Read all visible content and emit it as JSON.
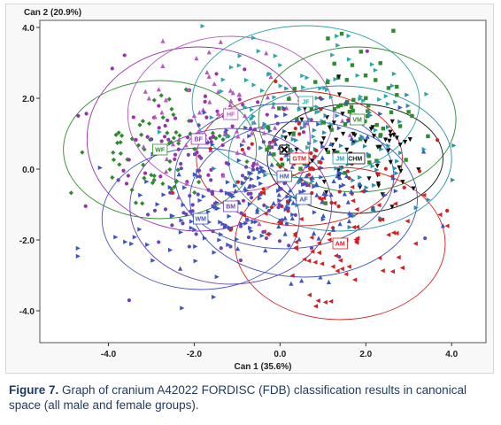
{
  "chart_data": {
    "type": "scatter",
    "title": "",
    "xlabel": "Can 1 (35.6%)",
    "ylabel": "Can 2 (20.9%)",
    "xlim": [
      -5.6,
      4.8
    ],
    "ylim": [
      -4.9,
      4.2
    ],
    "xticks": [
      -4.0,
      -2.0,
      0.0,
      2.0,
      4.0
    ],
    "yticks": [
      4.0,
      2.0,
      0.0,
      -2.0,
      -4.0
    ],
    "tick_labels_x": [
      "-4.0",
      "-2.0",
      "0.0",
      "2.0",
      "4.0"
    ],
    "tick_labels_y": [
      "4.0",
      "2.0",
      "0.0",
      "-2.0",
      "-4.0"
    ],
    "grid": false,
    "groups": [
      {
        "name": "WF",
        "color": "#2e8b2e",
        "marker": "diamond",
        "centroid": [
          -2.8,
          0.55
        ],
        "ellipse": {
          "rx": 2.25,
          "ry": 1.95
        }
      },
      {
        "name": "BF",
        "color": "#9b2fae",
        "marker": "circle",
        "centroid": [
          -1.9,
          0.85
        ],
        "ellipse": {
          "rx": 2.6,
          "ry": 2.6
        }
      },
      {
        "name": "HF",
        "color": "#b55abf",
        "marker": "triangle-up",
        "centroid": [
          -1.15,
          1.55
        ],
        "ellipse": {
          "rx": 2.4,
          "ry": 2.2
        }
      },
      {
        "name": "JF",
        "color": "#2aa7a7",
        "marker": "triangle-right",
        "centroid": [
          0.6,
          1.9
        ],
        "ellipse": {
          "rx": 2.65,
          "ry": 2.15
        }
      },
      {
        "name": "VM",
        "color": "#2e8b2e",
        "marker": "square",
        "centroid": [
          1.8,
          1.4
        ],
        "ellipse": {
          "rx": 2.3,
          "ry": 2.05
        }
      },
      {
        "name": "CHM",
        "color": "#111111",
        "marker": "triangle-down",
        "centroid": [
          1.75,
          0.3
        ],
        "ellipse": {
          "rx": 2.05,
          "ry": 1.55
        }
      },
      {
        "name": "JM",
        "color": "#2a8fa8",
        "marker": "triangle-right",
        "centroid": [
          1.4,
          0.3
        ],
        "ellipse": {
          "rx": 2.6,
          "ry": 2.05
        }
      },
      {
        "name": "GTM",
        "color": "#d42020",
        "marker": "circle",
        "centroid": [
          0.45,
          0.3
        ],
        "ellipse": {
          "rx": 2.4,
          "ry": 1.9
        }
      },
      {
        "name": "HM",
        "color": "#3d55c0",
        "marker": "triangle-right",
        "centroid": [
          0.1,
          -0.2
        ],
        "ellipse": {
          "rx": 2.55,
          "ry": 2.05
        }
      },
      {
        "name": "AF",
        "color": "#3d55c0",
        "marker": "triangle-up",
        "centroid": [
          0.55,
          -0.85
        ],
        "ellipse": {
          "rx": 2.65,
          "ry": 2.2
        }
      },
      {
        "name": "AM",
        "color": "#d42020",
        "marker": "triangle-left",
        "centroid": [
          1.4,
          -2.1
        ],
        "ellipse": {
          "rx": 2.45,
          "ry": 2.15
        }
      },
      {
        "name": "BM",
        "color": "#6a44b8",
        "marker": "circle",
        "centroid": [
          -1.15,
          -1.05
        ],
        "ellipse": {
          "rx": 2.35,
          "ry": 2.2
        }
      },
      {
        "name": "WM",
        "color": "#3d55c0",
        "marker": "triangle-right",
        "centroid": [
          -1.85,
          -1.4
        ],
        "ellipse": {
          "rx": 2.3,
          "ry": 2.0
        }
      }
    ],
    "unknown_case": {
      "x": 0.1,
      "y": 0.55,
      "marker": "x"
    }
  },
  "caption": {
    "figure_number": "Figure 7.",
    "text": " Graph of cranium A42022 FORDISC (FDB) classification results in canonical space (all male and female groups)."
  }
}
